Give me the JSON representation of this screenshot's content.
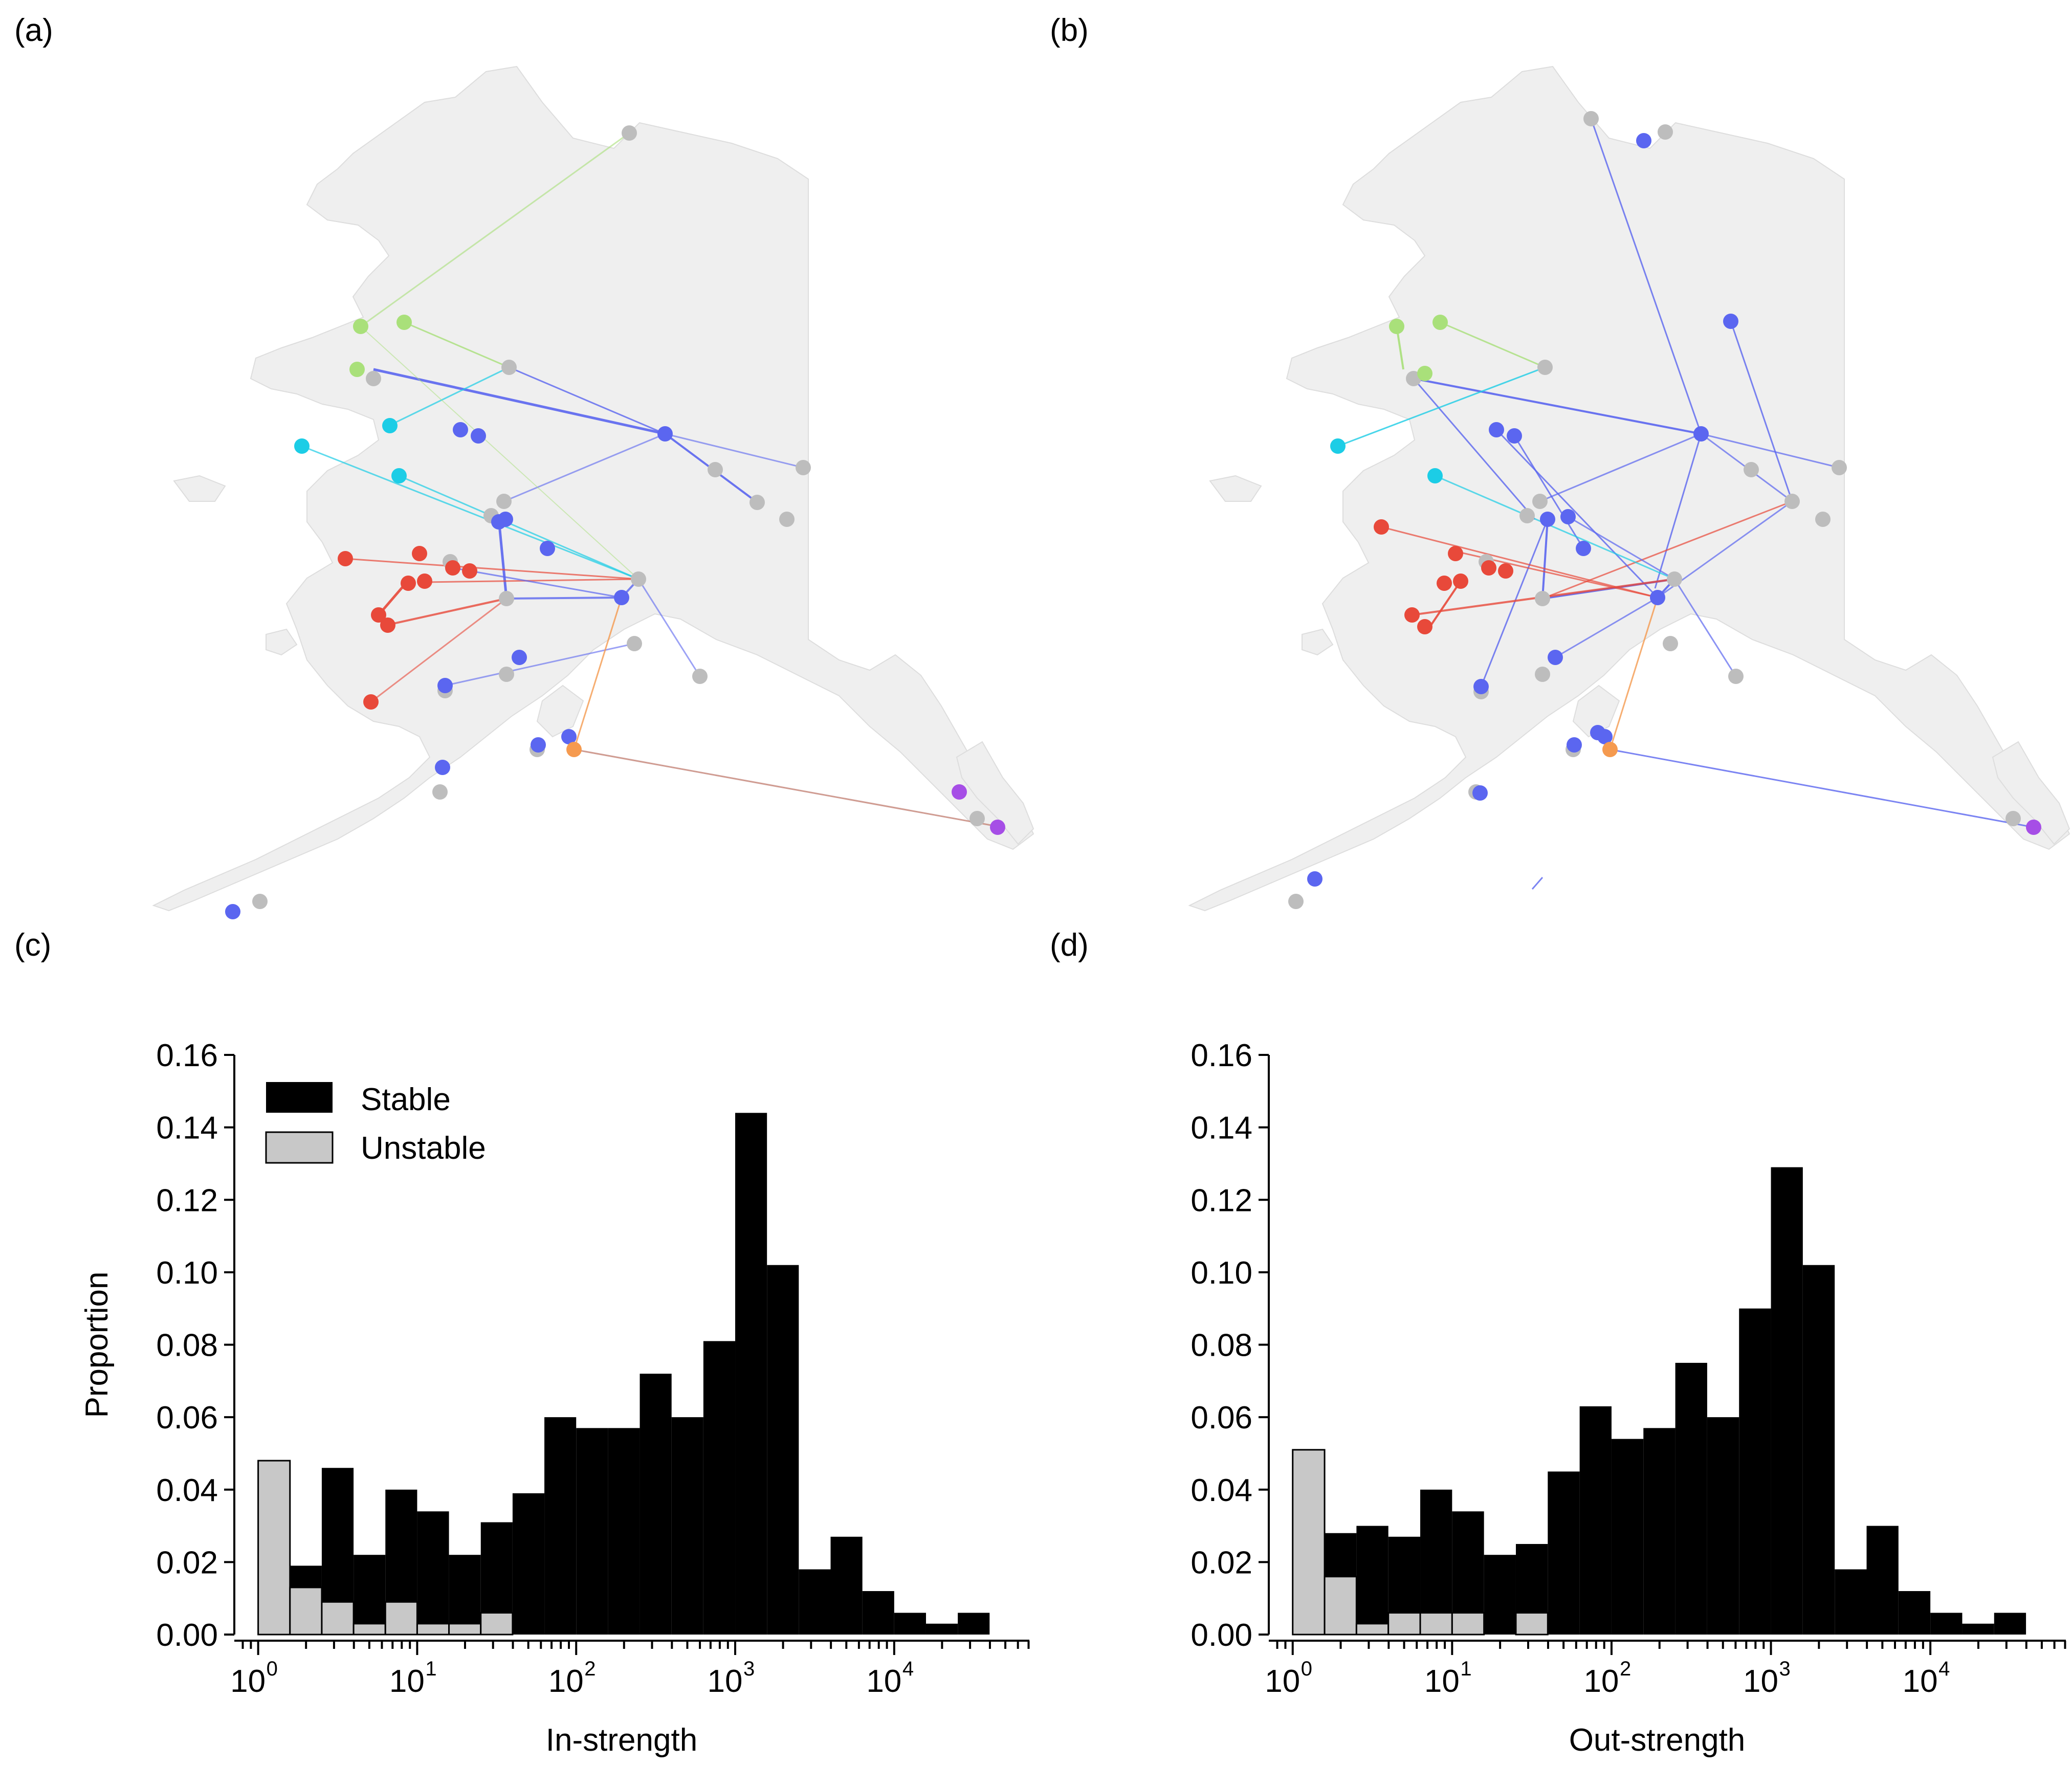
{
  "colors": {
    "land": "#efefef",
    "stable": "#000000",
    "unstable": "#c8c8c8",
    "grey_node": "#bdbdbd",
    "blue": "#5b66f0",
    "red": "#e8493a",
    "lightgreen": "#a9e07a",
    "cyan": "#1ccde6",
    "orange": "#f59a4f",
    "purple": "#a64ee6"
  },
  "panel_labels": {
    "a": "(a)",
    "b": "(b)",
    "c": "(c)",
    "d": "(d)"
  },
  "legend": {
    "stable": "Stable",
    "unstable": "Unstable"
  },
  "chart_data": [
    {
      "panel": "(c)",
      "type": "bar",
      "subtype": "histogram",
      "xscale": "log",
      "xlabel": "In-strength",
      "ylabel": "Proportion",
      "ylim": [
        0,
        0.16
      ],
      "xlim_log10": [
        -0.15,
        4.85
      ],
      "yticks": [
        "0.00",
        "0.02",
        "0.04",
        "0.06",
        "0.08",
        "0.10",
        "0.12",
        "0.14",
        "0.16"
      ],
      "xticks": [
        {
          "base": "10",
          "exp": "0"
        },
        {
          "base": "10",
          "exp": "1"
        },
        {
          "base": "10",
          "exp": "2"
        },
        {
          "base": "10",
          "exp": "3"
        },
        {
          "base": "10",
          "exp": "4"
        }
      ],
      "bin_edges_log10": [
        0,
        0.2,
        0.4,
        0.6,
        0.8,
        1.0,
        1.2,
        1.4,
        1.6,
        1.8,
        2.0,
        2.2,
        2.4,
        2.6,
        2.8,
        3.0,
        3.2,
        3.4,
        3.6,
        3.8,
        4.0,
        4.2,
        4.4,
        4.6
      ],
      "series": [
        {
          "name": "Stable",
          "values": [
            0.0,
            0.019,
            0.046,
            0.022,
            0.04,
            0.034,
            0.022,
            0.031,
            0.039,
            0.06,
            0.057,
            0.057,
            0.072,
            0.06,
            0.081,
            0.144,
            0.102,
            0.018,
            0.027,
            0.012,
            0.006,
            0.003,
            0.006
          ]
        },
        {
          "name": "Unstable",
          "values": [
            0.048,
            0.013,
            0.009,
            0.003,
            0.009,
            0.003,
            0.003,
            0.006,
            0.0,
            0.0,
            0.0,
            0.0,
            0.0,
            0.0,
            0.0,
            0.0,
            0.0,
            0.0,
            0.0,
            0.0,
            0.0,
            0.0,
            0.0
          ]
        }
      ]
    },
    {
      "panel": "(d)",
      "type": "bar",
      "subtype": "histogram",
      "xscale": "log",
      "xlabel": "Out-strength",
      "ylabel": "",
      "ylim": [
        0,
        0.16
      ],
      "xlim_log10": [
        -0.15,
        4.85
      ],
      "yticks": [
        "0.00",
        "0.02",
        "0.04",
        "0.06",
        "0.08",
        "0.10",
        "0.12",
        "0.14",
        "0.16"
      ],
      "xticks": [
        {
          "base": "10",
          "exp": "0"
        },
        {
          "base": "10",
          "exp": "1"
        },
        {
          "base": "10",
          "exp": "2"
        },
        {
          "base": "10",
          "exp": "3"
        },
        {
          "base": "10",
          "exp": "4"
        }
      ],
      "bin_edges_log10": [
        0,
        0.2,
        0.4,
        0.6,
        0.8,
        1.0,
        1.2,
        1.4,
        1.6,
        1.8,
        2.0,
        2.2,
        2.4,
        2.6,
        2.8,
        3.0,
        3.2,
        3.4,
        3.6,
        3.8,
        4.0,
        4.2,
        4.4,
        4.6
      ],
      "series": [
        {
          "name": "Stable",
          "values": [
            0.0,
            0.028,
            0.03,
            0.027,
            0.04,
            0.034,
            0.022,
            0.025,
            0.045,
            0.063,
            0.054,
            0.057,
            0.075,
            0.06,
            0.09,
            0.129,
            0.102,
            0.018,
            0.03,
            0.012,
            0.006,
            0.003,
            0.006
          ]
        },
        {
          "name": "Unstable",
          "values": [
            0.051,
            0.016,
            0.003,
            0.006,
            0.006,
            0.006,
            0.0,
            0.006,
            0.0,
            0.0,
            0.0,
            0.0,
            0.0,
            0.0,
            0.0,
            0.0,
            0.0,
            0.0,
            0.0,
            0.0,
            0.0,
            0.0,
            0.0
          ]
        }
      ]
    }
  ]
}
